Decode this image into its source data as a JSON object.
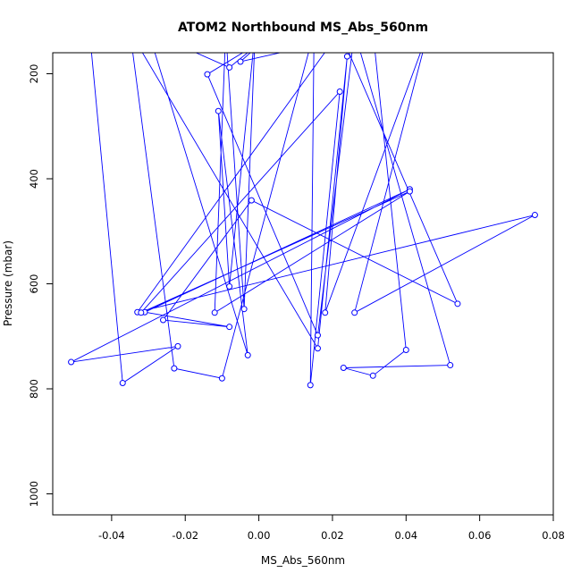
{
  "chart_data": {
    "type": "line",
    "title": "ATOM2 Northbound MS_Abs_560nm",
    "xlabel": "MS_Abs_560nm",
    "ylabel": "Pressure (mbar)",
    "xlim": [
      -0.056,
      0.08
    ],
    "ylim": [
      1040,
      160
    ],
    "y_reversed": true,
    "x_ticks": [
      -0.04,
      -0.02,
      0.0,
      0.02,
      0.04,
      0.06,
      0.08
    ],
    "x_tick_labels": [
      "-0.04",
      "-0.02",
      "0.00",
      "0.02",
      "0.04",
      "0.06",
      "0.08"
    ],
    "y_ticks": [
      200,
      400,
      600,
      800,
      1000
    ],
    "y_tick_labels": [
      "200",
      "400",
      "600",
      "800",
      "1000"
    ],
    "grid": false,
    "legend": "none",
    "series_color": "#0000ff",
    "marker": "open-circle",
    "points": [
      {
        "x": -0.046,
        "y": 120
      },
      {
        "x": -0.037,
        "y": 789
      },
      {
        "x": -0.022,
        "y": 719
      },
      {
        "x": -0.051,
        "y": 749
      },
      {
        "x": 0.041,
        "y": 420
      },
      {
        "x": -0.031,
        "y": 654
      },
      {
        "x": -0.008,
        "y": 682
      },
      {
        "x": -0.026,
        "y": 669
      },
      {
        "x": -0.002,
        "y": 441
      },
      {
        "x": 0.054,
        "y": 638
      },
      {
        "x": 0.022,
        "y": 120
      },
      {
        "x": -0.033,
        "y": 654
      },
      {
        "x": 0.075,
        "y": 469
      },
      {
        "x": 0.026,
        "y": 655
      },
      {
        "x": 0.046,
        "y": 120
      },
      {
        "x": 0.018,
        "y": 655
      },
      {
        "x": 0.024,
        "y": 167
      },
      {
        "x": 0.016,
        "y": 723
      },
      {
        "x": -0.035,
        "y": 120
      },
      {
        "x": -0.023,
        "y": 761
      },
      {
        "x": -0.01,
        "y": 780
      },
      {
        "x": 0.015,
        "y": 120
      },
      {
        "x": 0.014,
        "y": 793
      },
      {
        "x": 0.022,
        "y": 234
      },
      {
        "x": -0.032,
        "y": 655
      },
      {
        "x": 0.041,
        "y": 424
      },
      {
        "x": -0.012,
        "y": 655
      },
      {
        "x": -0.009,
        "y": 120
      },
      {
        "x": -0.004,
        "y": 648
      },
      {
        "x": -0.001,
        "y": 120
      },
      {
        "x": -0.008,
        "y": 605
      },
      {
        "x": -0.011,
        "y": 271
      },
      {
        "x": -0.003,
        "y": 736
      },
      {
        "x": -0.03,
        "y": 120
      },
      {
        "x": -0.008,
        "y": 188
      },
      {
        "x": 0.004,
        "y": 120
      },
      {
        "x": -0.005,
        "y": 177
      },
      {
        "x": 0.031,
        "y": 120
      },
      {
        "x": 0.04,
        "y": 726
      },
      {
        "x": 0.031,
        "y": 775
      },
      {
        "x": 0.023,
        "y": 760
      },
      {
        "x": 0.052,
        "y": 755
      },
      {
        "x": 0.026,
        "y": 120
      },
      {
        "x": 0.016,
        "y": 698
      },
      {
        "x": -0.014,
        "y": 201
      },
      {
        "x": 0.005,
        "y": 120
      }
    ]
  }
}
